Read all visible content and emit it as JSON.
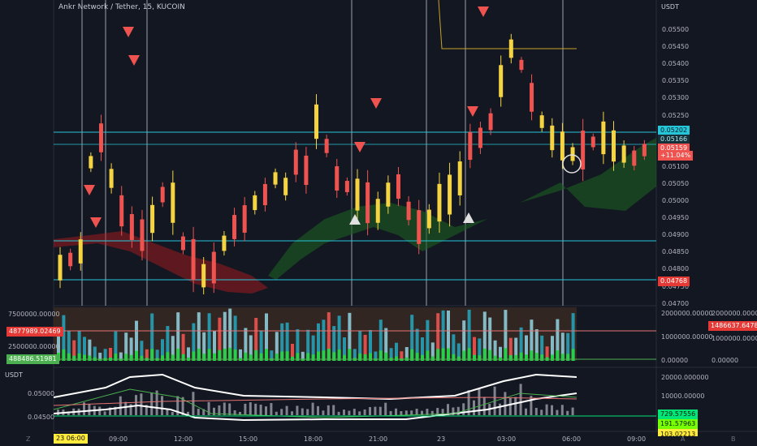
{
  "header": {
    "symbol_title": "Ankr Network / Tether, 15, KUCOIN",
    "currency": "USDT"
  },
  "price_axis": {
    "ticks": [
      "0.05500",
      "0.05450",
      "0.05400",
      "0.05350",
      "0.05300",
      "0.05250",
      "0.05200",
      "0.05150",
      "0.05100",
      "0.05050",
      "0.05000",
      "0.04950",
      "0.04900",
      "0.04850",
      "0.04800",
      "0.04750",
      "0.04700"
    ],
    "tags": {
      "line_upper": "0.05202",
      "line_lower": "0.05166",
      "last_price": "0.05159",
      "change": "+11.04%",
      "low_line": "0.04768"
    }
  },
  "volume_pane": {
    "left_ticks": [
      "7500000.00000",
      "2500000.00000"
    ],
    "left_tag_red": "4877989.02469",
    "left_tag_green": "488486.51981",
    "right_ticks": [
      "2000000.00000",
      "1000000.00000",
      "0.00000"
    ],
    "far_right_ticks": [
      "2000000.00000",
      "1000000.00000",
      "0.00000"
    ],
    "far_right_tag": "1486637.64784"
  },
  "osc_pane": {
    "currency": "USDT",
    "left_ticks": [
      "0.05000",
      "0.04500"
    ],
    "right_ticks": [
      "20000.000000",
      "10000.00000"
    ],
    "right_tags": {
      "green": "729.57556",
      "lime": "191.57963",
      "yellow": "103.02213"
    }
  },
  "time_axis": {
    "labels": [
      "09:00",
      "12:00",
      "15:00",
      "18:00",
      "21:00",
      "23",
      "03:00",
      "06:00",
      "09:00"
    ],
    "highlight": "23   06:00",
    "icons": [
      "Z",
      "A",
      "B"
    ]
  },
  "colors": {
    "background": "#131722",
    "bull": "#f5d442",
    "bear": "#ef5350",
    "cyan_line": "#26c6da",
    "cloud_green": "#1b5e20",
    "cloud_red": "#b71c1c"
  }
}
